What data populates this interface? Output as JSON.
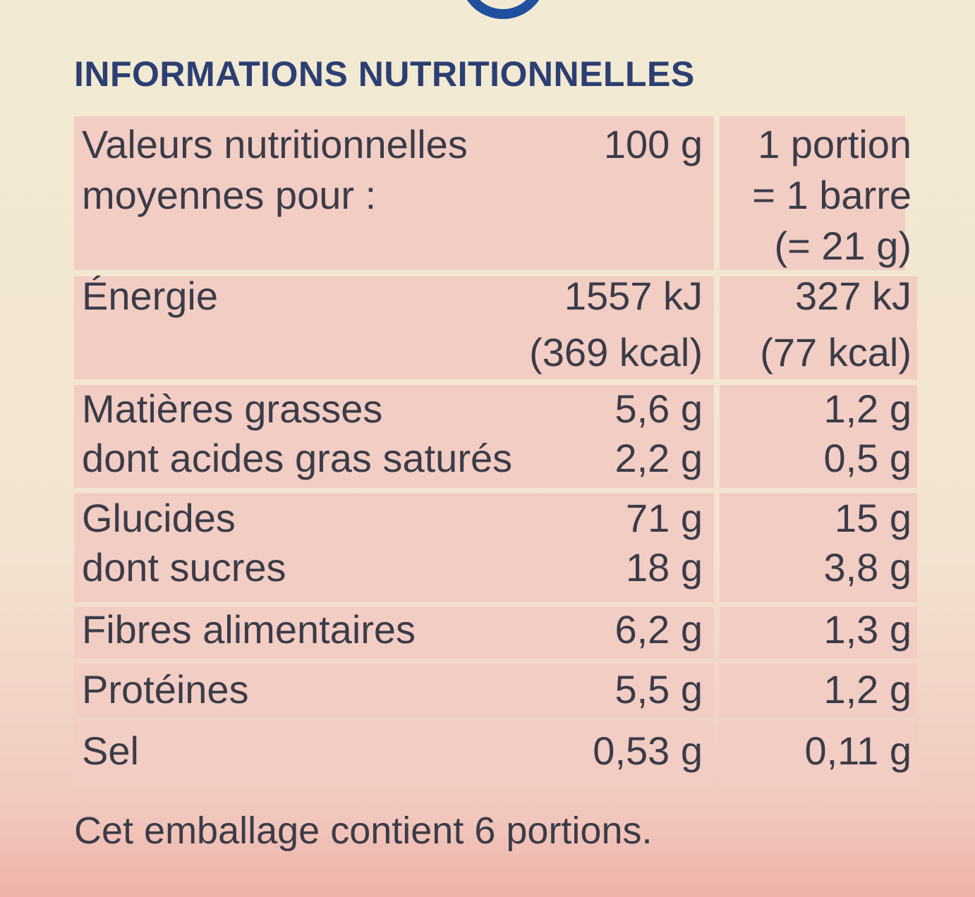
{
  "title": "INFORMATIONS NUTRITIONNELLES",
  "table": {
    "header": {
      "label": [
        "Valeurs nutritionnelles",
        "moyennes pour :"
      ],
      "per_100g": [
        "100 g"
      ],
      "per_portion": [
        "1 portion",
        "= 1 barre",
        "(= 21 g)"
      ]
    },
    "rows": [
      {
        "label": [
          "Énergie"
        ],
        "per_100g": [
          "1557 kJ",
          "(369 kcal)"
        ],
        "per_portion": [
          "327 kJ",
          "(77 kcal)"
        ]
      },
      {
        "label": [
          "Matières grasses",
          "dont acides gras saturés"
        ],
        "per_100g": [
          "5,6 g",
          "2,2 g"
        ],
        "per_portion": [
          "1,2 g",
          "0,5 g"
        ]
      },
      {
        "label": [
          "Glucides",
          "dont sucres"
        ],
        "per_100g": [
          "71 g",
          "18 g"
        ],
        "per_portion": [
          "15 g",
          "3,8 g"
        ]
      },
      {
        "label": [
          "Fibres alimentaires"
        ],
        "per_100g": [
          "6,2 g"
        ],
        "per_portion": [
          "1,3 g"
        ]
      },
      {
        "label": [
          "Protéines"
        ],
        "per_100g": [
          "5,5 g"
        ],
        "per_portion": [
          "1,2 g"
        ]
      },
      {
        "label": [
          "Sel"
        ],
        "per_100g": [
          "0,53 g"
        ],
        "per_portion": [
          "0,11 g"
        ]
      }
    ]
  },
  "footer": "Cet emballage contient 6 portions."
}
